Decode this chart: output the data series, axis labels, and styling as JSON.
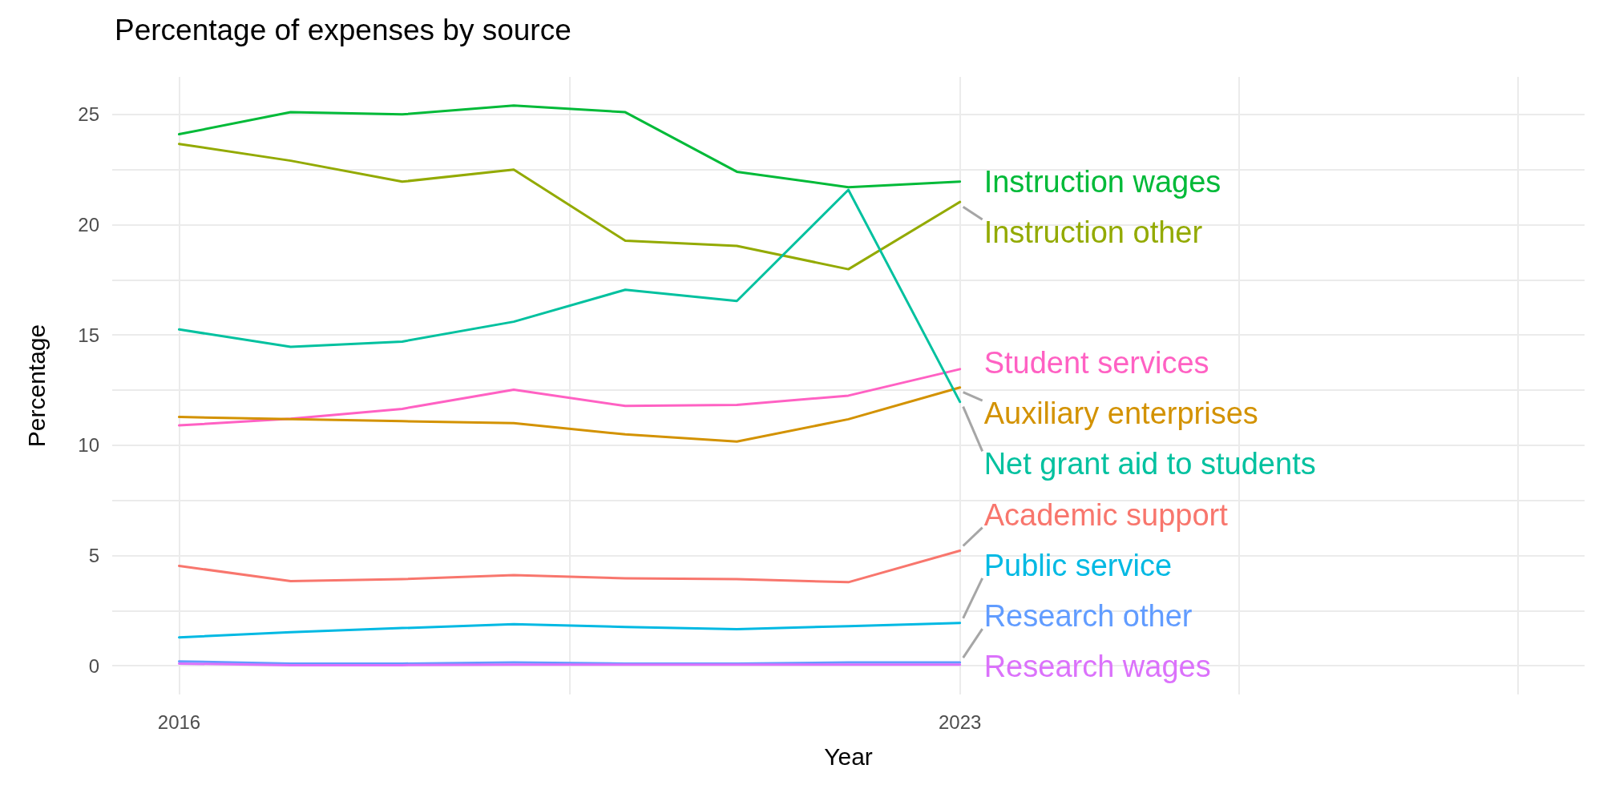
{
  "chart_data": {
    "type": "line",
    "title": "Percentage of expenses by source",
    "xlabel": "Year",
    "ylabel": "Percentage",
    "x": [
      2016,
      2017,
      2018,
      2019,
      2020,
      2021,
      2022,
      2023
    ],
    "series": [
      {
        "name": "Instruction wages",
        "color": "#00ba38",
        "values": [
          24.1,
          25.1,
          25.0,
          25.4,
          25.1,
          22.4,
          21.7,
          21.95
        ]
      },
      {
        "name": "Instruction other",
        "color": "#93aa00",
        "values": [
          23.66,
          22.9,
          21.95,
          22.5,
          19.27,
          19.04,
          17.98,
          21.03
        ]
      },
      {
        "name": "Student services",
        "color": "#ff61c3",
        "values": [
          10.9,
          11.2,
          11.65,
          12.52,
          11.78,
          11.83,
          12.25,
          13.45
        ]
      },
      {
        "name": "Auxiliary enterprises",
        "color": "#d39200",
        "values": [
          11.28,
          11.18,
          11.09,
          11.0,
          10.49,
          10.17,
          11.18,
          12.62
        ]
      },
      {
        "name": "Net grant aid to students",
        "color": "#00c19f",
        "values": [
          15.25,
          14.46,
          14.7,
          15.6,
          17.05,
          16.54,
          21.58,
          11.97
        ]
      },
      {
        "name": "Academic support",
        "color": "#f8766d",
        "values": [
          4.53,
          3.84,
          3.93,
          4.11,
          3.97,
          3.93,
          3.79,
          5.22
        ]
      },
      {
        "name": "Public service",
        "color": "#00b9e3",
        "values": [
          1.29,
          1.52,
          1.71,
          1.89,
          1.76,
          1.66,
          1.8,
          1.94
        ]
      },
      {
        "name": "Research other",
        "color": "#619cff",
        "values": [
          0.2,
          0.1,
          0.1,
          0.15,
          0.1,
          0.1,
          0.15,
          0.15
        ]
      },
      {
        "name": "Research wages",
        "color": "#db72fb",
        "values": [
          0.1,
          0.03,
          0.03,
          0.05,
          0.05,
          0.05,
          0.05,
          0.05
        ]
      }
    ],
    "xlim": [
      2015.4,
      2028.6
    ],
    "xticks": [
      2016,
      {
        "value": 2019.5,
        "label": null
      },
      2023,
      {
        "value": 2025.5,
        "label": null
      },
      {
        "value": 2028,
        "label": null
      }
    ],
    "ylim": [
      -1.3,
      26.7
    ],
    "yticks": [
      0,
      {
        "value": 2.5,
        "label": null
      },
      5,
      {
        "value": 7.5,
        "label": null
      },
      10,
      {
        "value": 12.5,
        "label": null
      },
      15,
      {
        "value": 17.5,
        "label": null
      },
      20,
      {
        "value": 22.5,
        "label": null
      },
      25
    ],
    "grid": true,
    "marker": "none",
    "line_style": "solid"
  }
}
